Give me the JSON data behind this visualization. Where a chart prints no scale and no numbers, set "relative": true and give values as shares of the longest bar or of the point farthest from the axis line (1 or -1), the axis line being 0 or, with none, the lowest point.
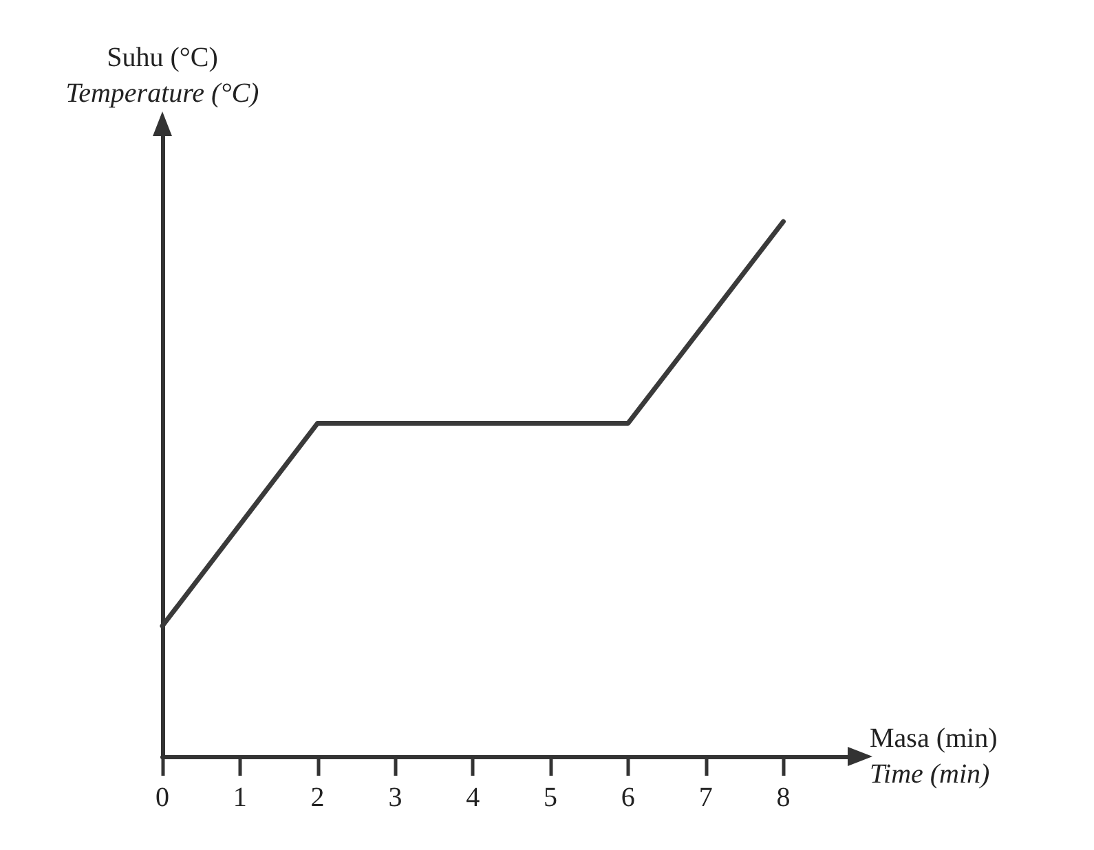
{
  "chart_data": {
    "type": "line",
    "relative": true,
    "xlabel": "Masa (min)\nTime (min)",
    "ylabel": "Suhu (°C)\nTemperature (°C)",
    "x": [
      0,
      2,
      6,
      8
    ],
    "series": [
      {
        "color": "#3a3a3a",
        "values": [
          0.244,
          0.623,
          0.623,
          1
        ]
      }
    ],
    "xlim": [
      0,
      8.9
    ],
    "xticks": [
      0,
      1,
      2,
      3,
      4,
      5,
      6,
      7,
      8
    ],
    "grid": false,
    "marker": "none",
    "line_style": "solid"
  }
}
